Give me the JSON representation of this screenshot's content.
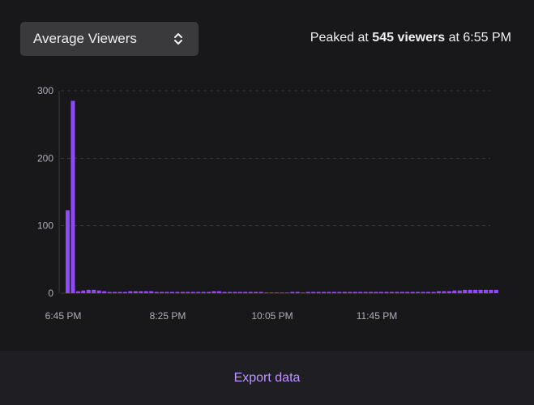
{
  "metric_select": {
    "selected": "Average Viewers"
  },
  "peak": {
    "prefix": "Peaked at",
    "value": "545 viewers",
    "middle": "at",
    "time": "6:55 PM"
  },
  "footer": {
    "export_label": "Export data"
  },
  "colors": {
    "bar": "#9147ff",
    "grid": "#3a3a3d",
    "axis_label": "#adadb8",
    "link": "#bf94ff"
  },
  "chart_data": {
    "type": "bar",
    "title": "",
    "xlabel": "",
    "ylabel": "",
    "ylim": [
      0,
      300
    ],
    "yticks": [
      0,
      100,
      200,
      300
    ],
    "xtick_labels": [
      "6:45 PM",
      "8:25 PM",
      "10:05 PM",
      "11:45 PM"
    ],
    "xtick_indices": [
      0,
      20,
      40,
      60
    ],
    "grid": true,
    "series": [
      {
        "values": [
          123,
          285,
          3,
          4,
          5,
          5,
          4,
          3,
          2,
          2,
          2,
          2,
          3,
          3,
          3,
          3,
          3,
          2,
          2,
          2,
          2,
          2,
          2,
          2,
          2,
          2,
          2,
          2,
          3,
          3,
          2,
          2,
          2,
          2,
          2,
          2,
          2,
          2,
          1,
          1,
          1,
          1,
          1,
          2,
          2,
          1,
          2,
          2,
          2,
          2,
          2,
          2,
          2,
          2,
          2,
          2,
          2,
          2,
          2,
          2,
          2,
          2,
          2,
          2,
          2,
          2,
          2,
          2,
          2,
          2,
          2,
          3,
          3,
          3,
          4,
          4,
          5,
          5,
          5,
          5,
          5,
          5,
          5
        ]
      }
    ]
  }
}
